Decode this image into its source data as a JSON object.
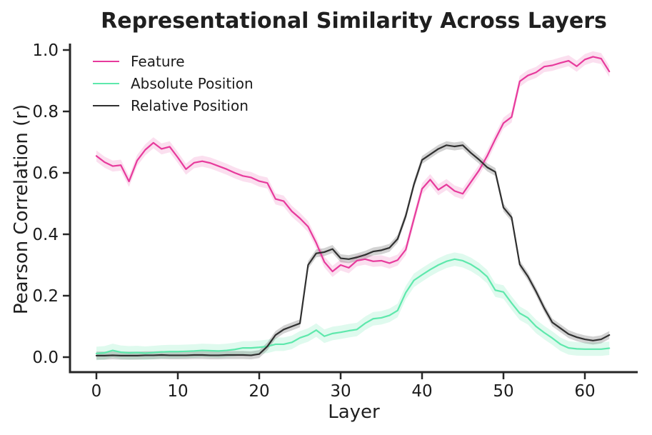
{
  "chart_data": {
    "type": "line",
    "title": "Representational Similarity Across Layers",
    "xlabel": "Layer",
    "ylabel": "Pearson Correlation (r)",
    "grid": false,
    "legend_position": "upper left",
    "xlim": [
      -3.2,
      66.5
    ],
    "ylim": [
      -0.05,
      1.02
    ],
    "xticks": [
      0,
      10,
      20,
      30,
      40,
      50,
      60
    ],
    "yticks": [
      "0.0",
      "0.2",
      "0.4",
      "0.6",
      "0.8",
      "1.0"
    ],
    "ytick_values": [
      0.0,
      0.2,
      0.4,
      0.6,
      0.8,
      1.0
    ],
    "x": [
      0,
      1,
      2,
      3,
      4,
      5,
      6,
      7,
      8,
      9,
      10,
      11,
      12,
      13,
      14,
      15,
      16,
      17,
      18,
      19,
      20,
      21,
      22,
      23,
      24,
      25,
      26,
      27,
      28,
      29,
      30,
      31,
      32,
      33,
      34,
      35,
      36,
      37,
      38,
      39,
      40,
      41,
      42,
      43,
      44,
      45,
      46,
      47,
      48,
      49,
      50,
      51,
      52,
      53,
      54,
      55,
      56,
      57,
      58,
      59,
      60,
      61,
      62,
      63
    ],
    "series": [
      {
        "name": "Feature",
        "color": "#e73a9c",
        "band_halfwidth": 0.018,
        "band_opacity": 0.16,
        "values": [
          0.655,
          0.635,
          0.622,
          0.625,
          0.572,
          0.64,
          0.675,
          0.698,
          0.678,
          0.685,
          0.65,
          0.612,
          0.633,
          0.638,
          0.632,
          0.622,
          0.612,
          0.6,
          0.59,
          0.585,
          0.573,
          0.567,
          0.515,
          0.508,
          0.475,
          0.452,
          0.425,
          0.372,
          0.31,
          0.279,
          0.3,
          0.291,
          0.314,
          0.319,
          0.312,
          0.314,
          0.306,
          0.316,
          0.35,
          0.45,
          0.548,
          0.578,
          0.545,
          0.562,
          0.541,
          0.532,
          0.57,
          0.608,
          0.655,
          0.71,
          0.762,
          0.782,
          0.898,
          0.917,
          0.927,
          0.946,
          0.95,
          0.958,
          0.965,
          0.947,
          0.969,
          0.978,
          0.972,
          0.93
        ]
      },
      {
        "name": "Absolute Position",
        "color": "#5ee8ac",
        "band_halfwidth": 0.022,
        "band_opacity": 0.2,
        "values": [
          0.012,
          0.014,
          0.022,
          0.016,
          0.014,
          0.015,
          0.013,
          0.015,
          0.017,
          0.018,
          0.018,
          0.019,
          0.02,
          0.022,
          0.021,
          0.02,
          0.022,
          0.025,
          0.03,
          0.03,
          0.032,
          0.035,
          0.042,
          0.042,
          0.048,
          0.063,
          0.072,
          0.088,
          0.068,
          0.077,
          0.081,
          0.086,
          0.09,
          0.11,
          0.125,
          0.128,
          0.136,
          0.152,
          0.21,
          0.25,
          0.268,
          0.285,
          0.3,
          0.312,
          0.319,
          0.314,
          0.302,
          0.285,
          0.262,
          0.218,
          0.212,
          0.176,
          0.143,
          0.128,
          0.1,
          0.08,
          0.062,
          0.042,
          0.03,
          0.027,
          0.026,
          0.026,
          0.026,
          0.029
        ]
      },
      {
        "name": "Relative Position",
        "color": "#303030",
        "band_halfwidth": 0.013,
        "band_opacity": 0.22,
        "values": [
          0.005,
          0.005,
          0.006,
          0.005,
          0.005,
          0.005,
          0.006,
          0.006,
          0.007,
          0.006,
          0.006,
          0.006,
          0.007,
          0.007,
          0.006,
          0.006,
          0.007,
          0.007,
          0.007,
          0.006,
          0.01,
          0.035,
          0.072,
          0.09,
          0.1,
          0.11,
          0.3,
          0.338,
          0.342,
          0.352,
          0.322,
          0.319,
          0.325,
          0.333,
          0.344,
          0.348,
          0.356,
          0.385,
          0.46,
          0.562,
          0.642,
          0.66,
          0.678,
          0.69,
          0.686,
          0.69,
          0.665,
          0.643,
          0.618,
          0.603,
          0.487,
          0.455,
          0.302,
          0.263,
          0.214,
          0.16,
          0.113,
          0.094,
          0.075,
          0.065,
          0.058,
          0.054,
          0.058,
          0.072
        ]
      }
    ]
  },
  "colors": {
    "background": "#ffffff",
    "spine": "#262626",
    "tick_label": "#1b1b1b",
    "title": "#1f1f1f"
  }
}
